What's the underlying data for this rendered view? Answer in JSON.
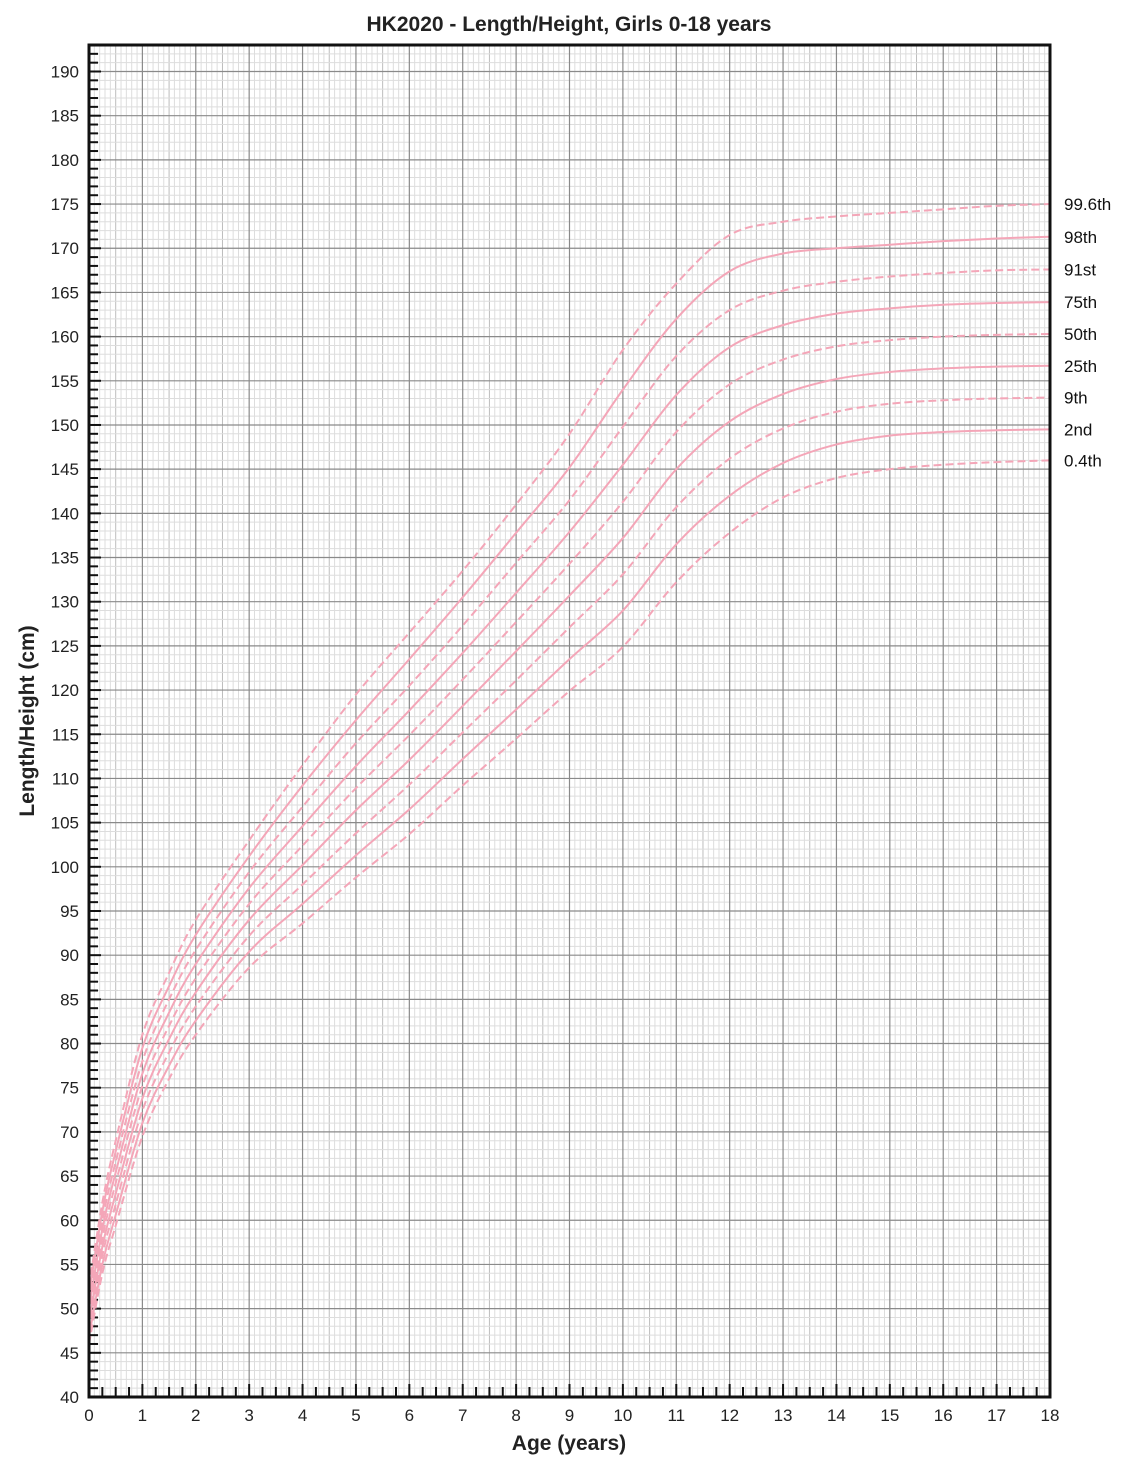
{
  "chart_data": {
    "type": "line",
    "title": "HK2020 - Length/Height, Girls 0-18 years",
    "xlabel": "Age (years)",
    "ylabel": "Length/Height (cm)",
    "xlim": [
      0,
      18
    ],
    "ylim": [
      40,
      193
    ],
    "x_ticks": [
      "0",
      "1",
      "2",
      "3",
      "4",
      "5",
      "6",
      "7",
      "8",
      "9",
      "10",
      "11",
      "12",
      "13",
      "14",
      "15",
      "16",
      "17",
      "18"
    ],
    "y_ticks": [
      "40",
      "45",
      "50",
      "55",
      "60",
      "65",
      "70",
      "75",
      "80",
      "85",
      "90",
      "95",
      "100",
      "105",
      "110",
      "115",
      "120",
      "125",
      "130",
      "135",
      "140",
      "145",
      "150",
      "155",
      "160",
      "165",
      "170",
      "175",
      "180",
      "185",
      "190"
    ],
    "grid": true,
    "legend": "curve labels at right end of lines",
    "line_color": "#f4a6b8",
    "x": [
      0,
      0.25,
      0.5,
      1,
      1.5,
      2,
      3,
      4,
      5,
      6,
      7,
      8,
      9,
      10,
      11,
      12,
      13,
      14,
      15,
      16,
      17,
      18
    ],
    "series": [
      {
        "name": "99.6th",
        "style": "dashed",
        "values": [
          52.5,
          62,
          69,
          81,
          88,
          94,
          103,
          111.5,
          119.5,
          126.5,
          133.5,
          141,
          149,
          158.5,
          166,
          171.5,
          173,
          173.6,
          174,
          174.4,
          174.8,
          175
        ]
      },
      {
        "name": "98th",
        "style": "solid",
        "values": [
          51.6,
          61,
          67.8,
          79.5,
          86.5,
          92.3,
          101.2,
          109.2,
          116.6,
          123.5,
          130.5,
          137.8,
          145.2,
          154,
          162,
          167.4,
          169.4,
          170,
          170.4,
          170.8,
          171.1,
          171.3
        ]
      },
      {
        "name": "91st",
        "style": "dashed",
        "values": [
          50.8,
          60,
          66.6,
          78,
          85,
          90.6,
          99.4,
          106.8,
          114,
          120.5,
          127.3,
          134.4,
          141.5,
          149.8,
          157.8,
          163,
          165.2,
          166.2,
          166.8,
          167.2,
          167.5,
          167.6
        ]
      },
      {
        "name": "75th",
        "style": "solid",
        "values": [
          50,
          59,
          65.4,
          76.6,
          83.5,
          89,
          97.6,
          104.6,
          111.4,
          117.7,
          124.2,
          131,
          137.9,
          145.5,
          153.4,
          158.8,
          161.3,
          162.6,
          163.2,
          163.6,
          163.8,
          163.9
        ]
      },
      {
        "name": "50th",
        "style": "dashed",
        "values": [
          49.2,
          58,
          64.2,
          75.2,
          82,
          87.4,
          95.8,
          102.4,
          108.9,
          114.9,
          121.2,
          127.7,
          134.3,
          141.3,
          149.2,
          154.6,
          157.4,
          158.9,
          159.6,
          160,
          160.2,
          160.3
        ]
      },
      {
        "name": "25th",
        "style": "solid",
        "values": [
          48.4,
          57,
          63,
          73.8,
          80.5,
          85.8,
          94,
          100.2,
          106.4,
          112.1,
          118.2,
          124.4,
          130.7,
          137.2,
          145,
          150.4,
          153.5,
          155.2,
          156,
          156.4,
          156.6,
          156.7
        ]
      },
      {
        "name": "9th",
        "style": "dashed",
        "values": [
          47.6,
          56,
          61.8,
          72.4,
          79,
          84.2,
          92.2,
          98,
          103.8,
          109.3,
          115.2,
          121.1,
          127.1,
          133.1,
          140.7,
          146.2,
          149.6,
          151.5,
          152.4,
          152.8,
          153,
          153.1
        ]
      },
      {
        "name": "2nd",
        "style": "solid",
        "values": [
          46.8,
          55,
          60.6,
          71,
          77.5,
          82.6,
          90.4,
          95.8,
          101.3,
          106.5,
          112.2,
          117.8,
          123.5,
          129,
          136.5,
          142,
          145.7,
          147.8,
          148.8,
          149.2,
          149.4,
          149.5
        ]
      },
      {
        "name": "0.4th",
        "style": "dashed",
        "values": [
          46,
          54,
          59.4,
          69.5,
          76,
          81,
          88.6,
          93.6,
          98.8,
          103.7,
          109.2,
          114.5,
          119.9,
          124.9,
          132.2,
          137.8,
          141.8,
          144,
          145,
          145.5,
          145.8,
          146
        ]
      }
    ]
  }
}
